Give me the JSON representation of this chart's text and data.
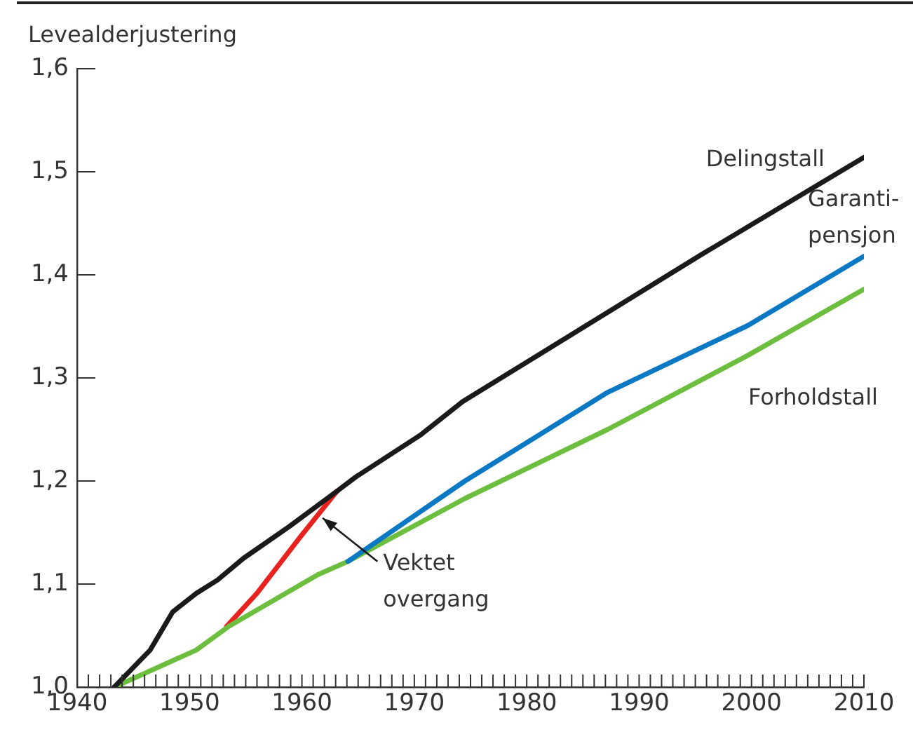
{
  "chart_data": {
    "type": "line",
    "ylabel": "Levealderjustering",
    "xlim": [
      1940,
      2010
    ],
    "xticks": [
      1940,
      {
        "value": 1941,
        "label": null
      },
      {
        "value": 1942,
        "label": null
      },
      {
        "value": 1943,
        "label": null
      },
      {
        "value": 1944,
        "label": null
      },
      {
        "value": 1945,
        "label": null
      },
      {
        "value": 1946,
        "label": null
      },
      {
        "value": 1947,
        "label": null
      },
      {
        "value": 1948,
        "label": null
      },
      {
        "value": 1949,
        "label": null
      },
      1950,
      {
        "value": 1951,
        "label": null
      },
      {
        "value": 1952,
        "label": null
      },
      {
        "value": 1953,
        "label": null
      },
      {
        "value": 1954,
        "label": null
      },
      {
        "value": 1955,
        "label": null
      },
      {
        "value": 1956,
        "label": null
      },
      {
        "value": 1957,
        "label": null
      },
      {
        "value": 1958,
        "label": null
      },
      {
        "value": 1959,
        "label": null
      },
      1960,
      {
        "value": 1961,
        "label": null
      },
      {
        "value": 1962,
        "label": null
      },
      {
        "value": 1963,
        "label": null
      },
      {
        "value": 1964,
        "label": null
      },
      {
        "value": 1965,
        "label": null
      },
      {
        "value": 1966,
        "label": null
      },
      {
        "value": 1967,
        "label": null
      },
      {
        "value": 1968,
        "label": null
      },
      {
        "value": 1969,
        "label": null
      },
      1970,
      {
        "value": 1971,
        "label": null
      },
      {
        "value": 1972,
        "label": null
      },
      {
        "value": 1973,
        "label": null
      },
      {
        "value": 1974,
        "label": null
      },
      {
        "value": 1975,
        "label": null
      },
      {
        "value": 1976,
        "label": null
      },
      {
        "value": 1977,
        "label": null
      },
      {
        "value": 1978,
        "label": null
      },
      {
        "value": 1979,
        "label": null
      },
      1980,
      {
        "value": 1981,
        "label": null
      },
      {
        "value": 1982,
        "label": null
      },
      {
        "value": 1983,
        "label": null
      },
      {
        "value": 1984,
        "label": null
      },
      {
        "value": 1985,
        "label": null
      },
      {
        "value": 1986,
        "label": null
      },
      {
        "value": 1987,
        "label": null
      },
      {
        "value": 1988,
        "label": null
      },
      {
        "value": 1989,
        "label": null
      },
      1990,
      {
        "value": 1991,
        "label": null
      },
      {
        "value": 1992,
        "label": null
      },
      {
        "value": 1993,
        "label": null
      },
      {
        "value": 1994,
        "label": null
      },
      {
        "value": 1995,
        "label": null
      },
      {
        "value": 1996,
        "label": null
      },
      {
        "value": 1997,
        "label": null
      },
      {
        "value": 1998,
        "label": null
      },
      {
        "value": 1999,
        "label": null
      },
      2000,
      {
        "value": 2001,
        "label": null
      },
      {
        "value": 2002,
        "label": null
      },
      {
        "value": 2003,
        "label": null
      },
      {
        "value": 2004,
        "label": null
      },
      {
        "value": 2005,
        "label": null
      },
      {
        "value": 2006,
        "label": null
      },
      {
        "value": 2007,
        "label": null
      },
      {
        "value": 2008,
        "label": null
      },
      {
        "value": 2009,
        "label": null
      },
      2010
    ],
    "ylim": [
      1.0,
      1.6
    ],
    "yticks": [
      {
        "value": 1.0,
        "label": "1,0"
      },
      {
        "value": 1.1,
        "label": "1,1"
      },
      {
        "value": 1.2,
        "label": "1,2"
      },
      {
        "value": 1.3,
        "label": "1,3"
      },
      {
        "value": 1.4,
        "label": "1,4"
      },
      {
        "value": 1.5,
        "label": "1,5"
      },
      {
        "value": 1.6,
        "label": "1,6"
      }
    ],
    "grid": false,
    "legend": false,
    "marker": "none",
    "line_style": "solid",
    "series": [
      {
        "name": "Delingstall",
        "color": "#1a1a1a",
        "x": [
          1943.3,
          1946.5,
          1948.5,
          1950.6,
          1952.5,
          1954.8,
          1958.9,
          1963.1,
          1964.8,
          1970.6,
          1974.3,
          1995.6,
          2010
        ],
        "values": [
          1.0,
          1.036,
          1.073,
          1.091,
          1.104,
          1.125,
          1.156,
          1.19,
          1.204,
          1.245,
          1.277,
          1.42,
          1.514
        ]
      },
      {
        "name": "Garanti-\npensjon",
        "color": "#0a78c3",
        "x": [
          1964.1,
          1974.5,
          1987.2,
          1999.7,
          2010
        ],
        "values": [
          1.122,
          1.2,
          1.286,
          1.351,
          1.418
        ]
      },
      {
        "name": "Forholdstall",
        "color": "#6cbf3e",
        "x": [
          1943.3,
          1950.6,
          1953.5,
          1961.4,
          1964.1,
          1974.5,
          1987.2,
          1999.7,
          2010
        ],
        "values": [
          1.0,
          1.036,
          1.059,
          1.109,
          1.122,
          1.183,
          1.25,
          1.322,
          1.386
        ]
      },
      {
        "name": "Vektet\novergang",
        "color": "#e8221f",
        "x": [
          1953.3,
          1956,
          1959.8,
          1963.1
        ],
        "values": [
          1.059,
          1.091,
          1.145,
          1.19
        ]
      }
    ]
  }
}
